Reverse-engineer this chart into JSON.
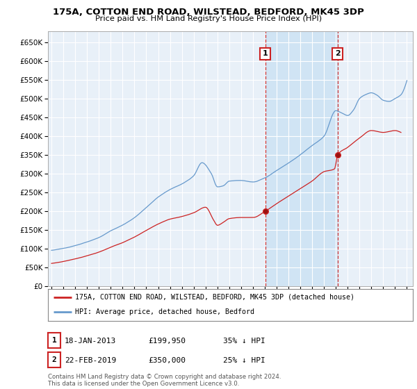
{
  "title": "175A, COTTON END ROAD, WILSTEAD, BEDFORD, MK45 3DP",
  "subtitle": "Price paid vs. HM Land Registry's House Price Index (HPI)",
  "ylim": [
    0,
    680000
  ],
  "yticks": [
    0,
    50000,
    100000,
    150000,
    200000,
    250000,
    300000,
    350000,
    400000,
    450000,
    500000,
    550000,
    600000,
    650000
  ],
  "xlim_start": 1994.7,
  "xlim_end": 2025.5,
  "legend_line1": "175A, COTTON END ROAD, WILSTEAD, BEDFORD, MK45 3DP (detached house)",
  "legend_line2": "HPI: Average price, detached house, Bedford",
  "ann1_label": "1",
  "ann1_date": "18-JAN-2013",
  "ann1_price": "£199,950",
  "ann1_pct": "35% ↓ HPI",
  "ann2_label": "2",
  "ann2_date": "22-FEB-2019",
  "ann2_price": "£350,000",
  "ann2_pct": "25% ↓ HPI",
  "vline1_x": 2013.05,
  "vline2_x": 2019.15,
  "sale1_y": 199950,
  "sale2_y": 350000,
  "footer": "Contains HM Land Registry data © Crown copyright and database right 2024.\nThis data is licensed under the Open Government Licence v3.0.",
  "hpi_color": "#6699cc",
  "price_color": "#cc2222",
  "bg_color": "#ffffff",
  "plot_bg_color": "#e8f0f8",
  "grid_color": "#ffffff",
  "vline_color": "#cc3333",
  "highlight_bg": "#d0e4f4"
}
